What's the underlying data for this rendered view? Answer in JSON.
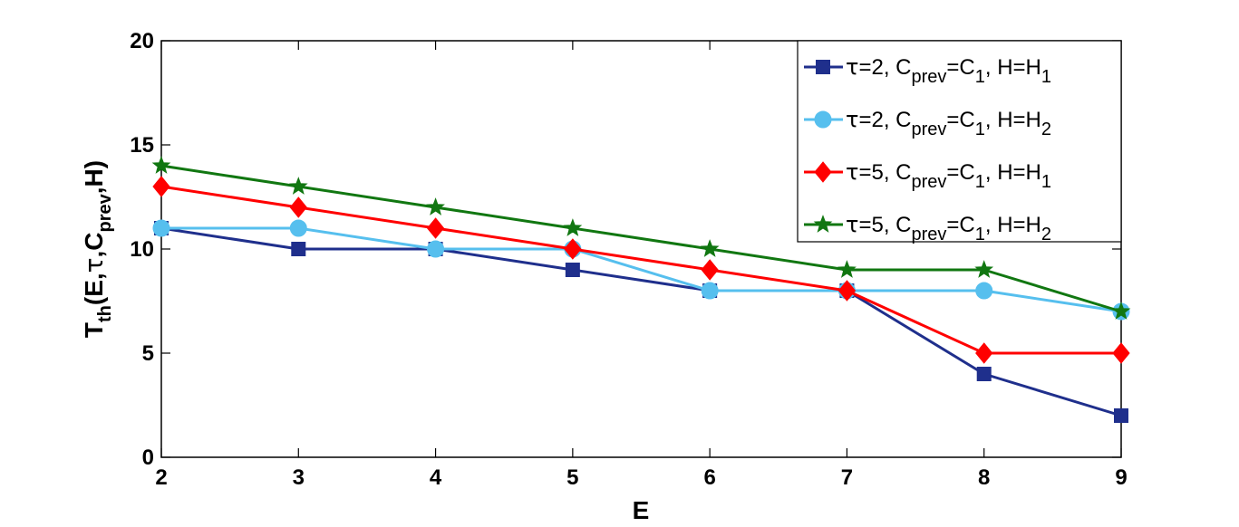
{
  "chart_data": {
    "type": "line",
    "xlabel": "E",
    "ylabel": {
      "main": "T",
      "sub": "th",
      "args_before": "(E,",
      "tau": "τ",
      "args_mid": ",C",
      "args_sub": "prev",
      "args_after": ",H)"
    },
    "xlim": [
      2,
      9
    ],
    "ylim": [
      0,
      20
    ],
    "xticks": [
      "2",
      "3",
      "4",
      "5",
      "6",
      "7",
      "8",
      "9"
    ],
    "yticks": [
      "0",
      "5",
      "10",
      "15",
      "20"
    ],
    "x": [
      2,
      3,
      4,
      5,
      6,
      7,
      8,
      9
    ],
    "legend_position": "top-right",
    "grid": false,
    "series": [
      {
        "name_parts": {
          "tau": "τ",
          "tau_val": "=2, C",
          "prev": "prev",
          "eq_c": "=C",
          "c_sub": "1",
          "h": ", H=H",
          "h_sub": "1"
        },
        "values": [
          11,
          10,
          10,
          9,
          8,
          8,
          4,
          2
        ],
        "color": "#1f2f8c",
        "marker": "square"
      },
      {
        "name_parts": {
          "tau": "τ",
          "tau_val": "=2, C",
          "prev": "prev",
          "eq_c": "=C",
          "c_sub": "1",
          "h": ", H=H",
          "h_sub": "2"
        },
        "values": [
          11,
          11,
          10,
          10,
          8,
          8,
          8,
          7
        ],
        "color": "#56bfee",
        "marker": "circle"
      },
      {
        "name_parts": {
          "tau": "τ",
          "tau_val": "=5, C",
          "prev": "prev",
          "eq_c": "=C",
          "c_sub": "1",
          "h": ", H=H",
          "h_sub": "1"
        },
        "values": [
          13,
          12,
          11,
          10,
          9,
          8,
          5,
          5
        ],
        "color": "#ff0000",
        "marker": "diamond"
      },
      {
        "name_parts": {
          "tau": "τ",
          "tau_val": "=5, C",
          "prev": "prev",
          "eq_c": "=C",
          "c_sub": "1",
          "h": ", H=H",
          "h_sub": "2"
        },
        "values": [
          14,
          13,
          12,
          11,
          10,
          9,
          9,
          7
        ],
        "color": "#117711",
        "marker": "star"
      }
    ]
  }
}
